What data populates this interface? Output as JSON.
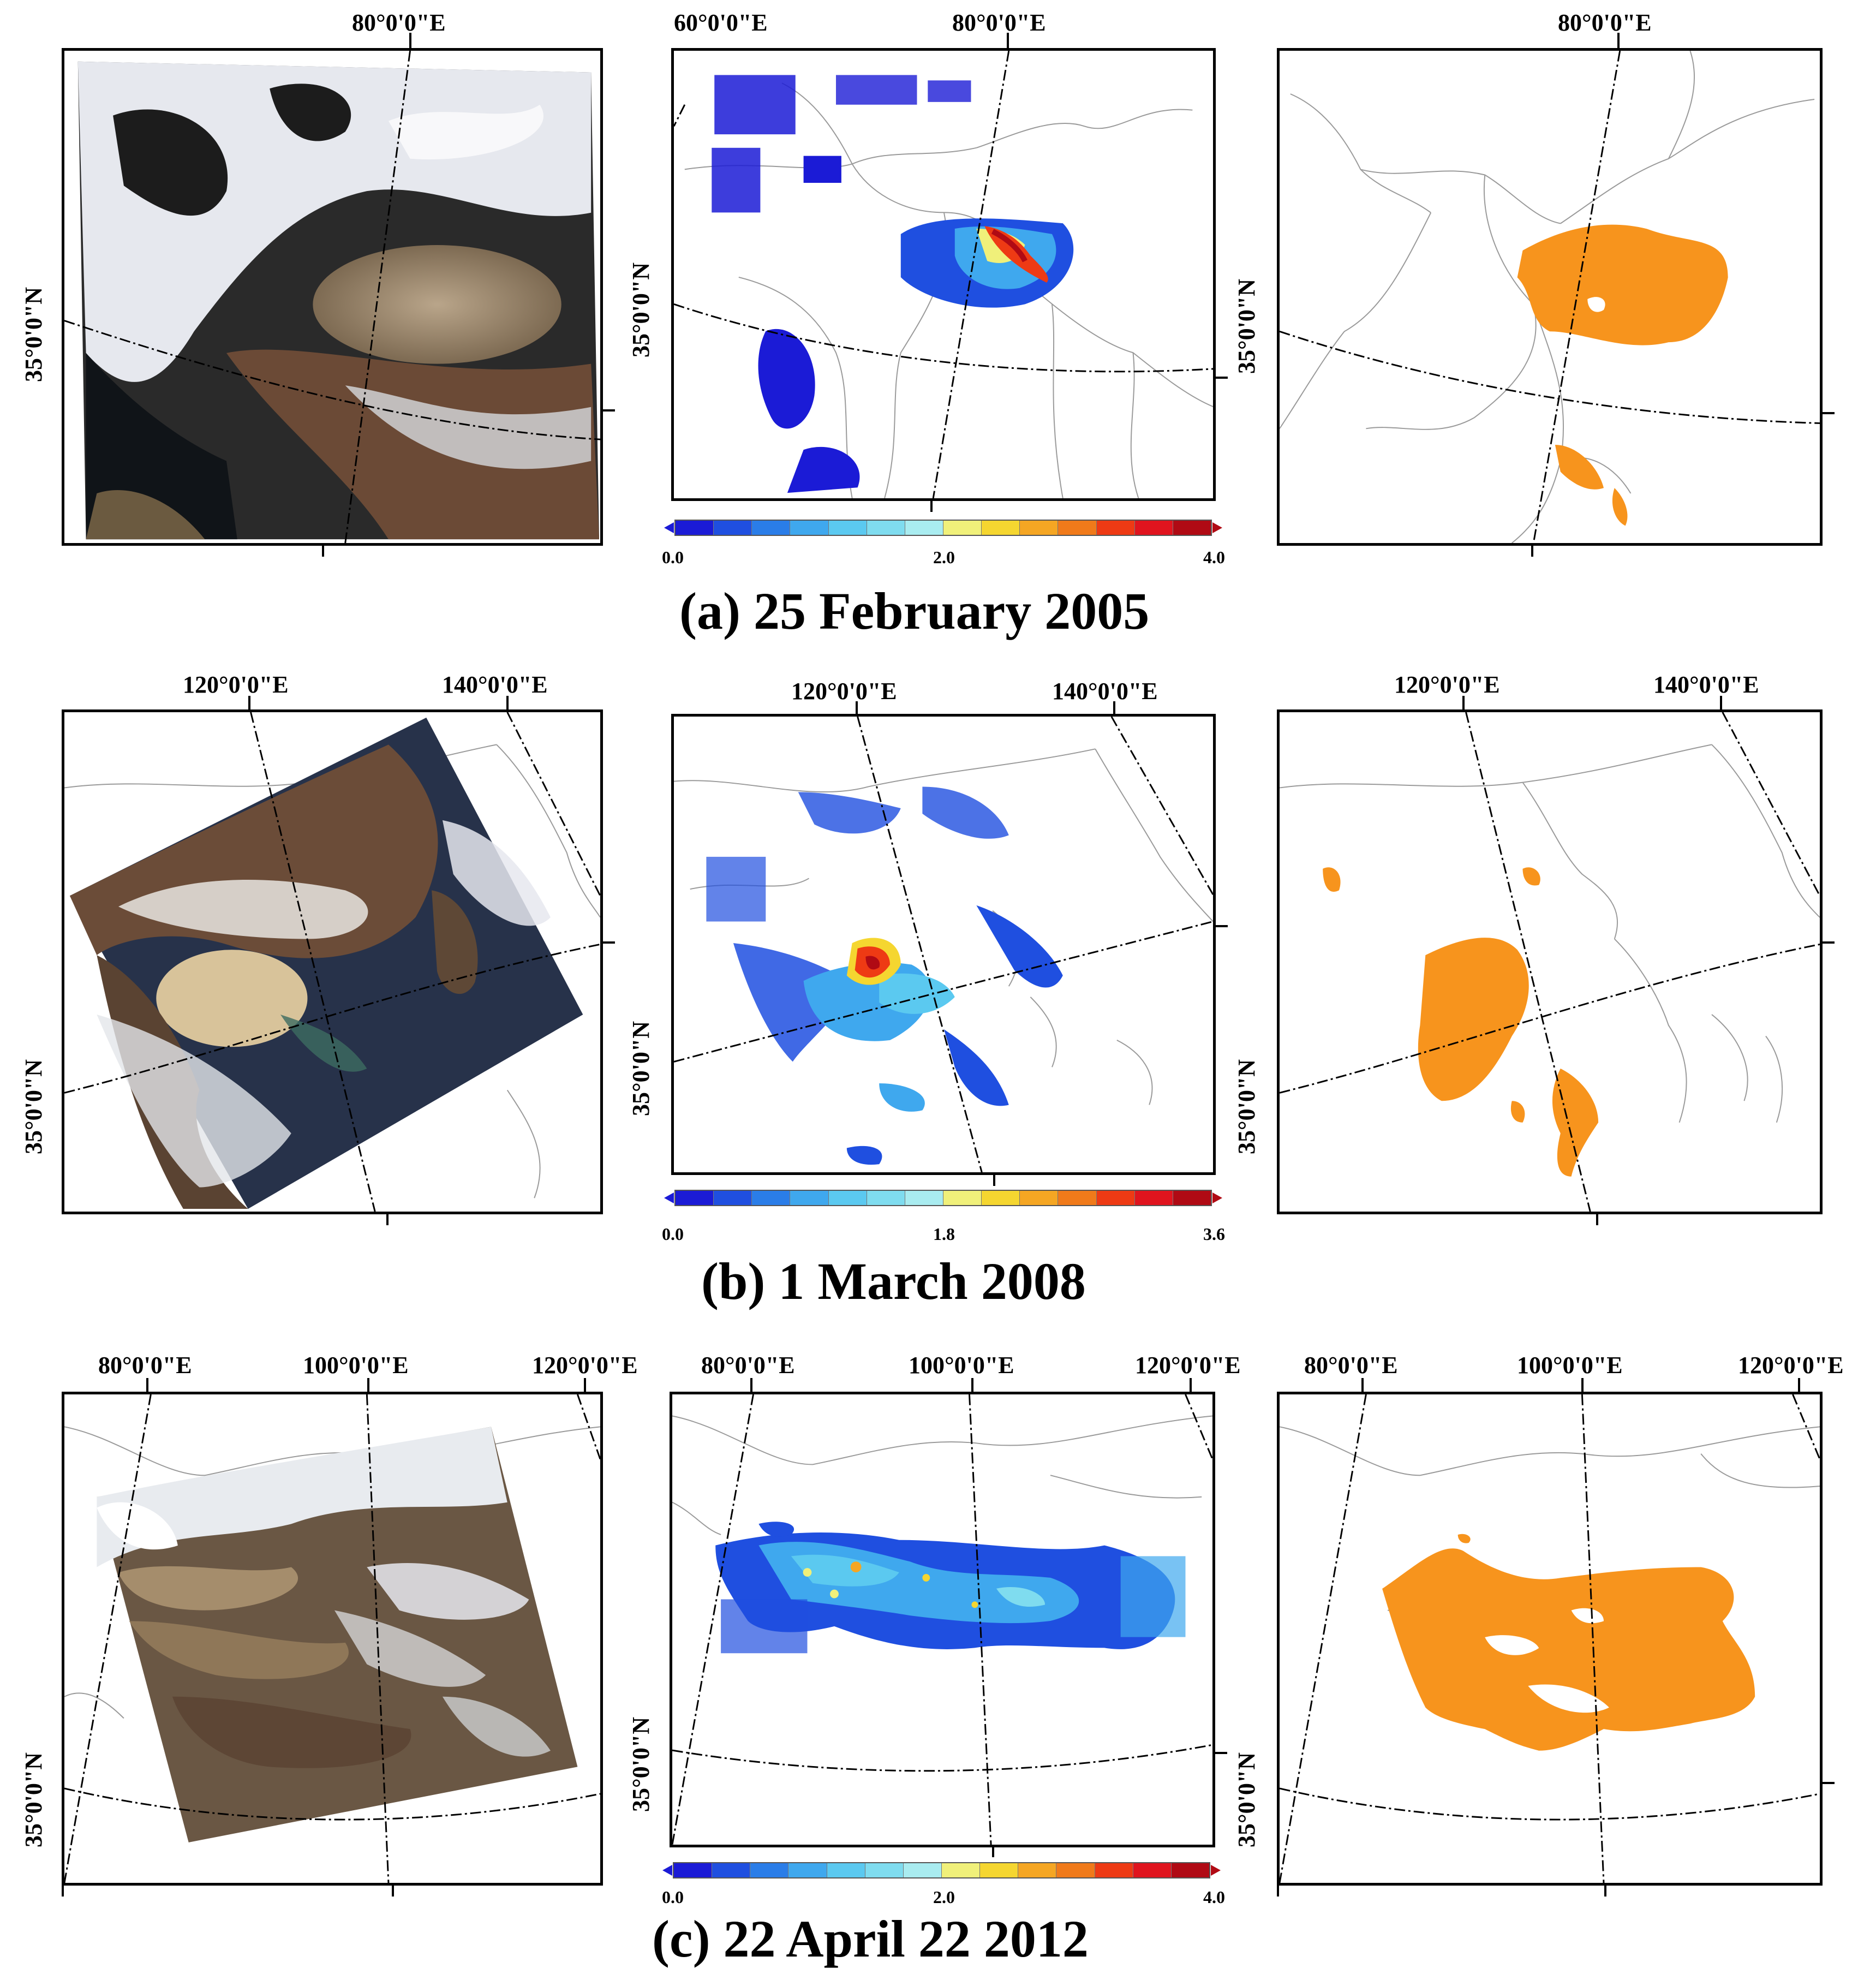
{
  "colorbar_colors": [
    "#1b1bd6",
    "#1f4fe0",
    "#2a7de8",
    "#3fa8ee",
    "#5bc9f0",
    "#7fdcef",
    "#a9ecf0",
    "#f0f07a",
    "#f5d630",
    "#f5a623",
    "#f07a1a",
    "#ee3a14",
    "#e0141e",
    "#b00a14"
  ],
  "dust_color": "#f7941d",
  "rows": [
    {
      "caption": "(a) 25 February 2005",
      "lon_labels_p1": [
        "80°0'0\"E"
      ],
      "lat_label": "35°0'0\"N",
      "lon_labels_p2": [
        "60°0'0\"E",
        "80°0'0\"E"
      ],
      "lon_labels_p3": [
        "80°0'0\"E"
      ],
      "colorbar": {
        "min": "0.0",
        "mid": "2.0",
        "max": "4.0"
      }
    },
    {
      "caption": "(b) 1 March 2008",
      "lon_labels_p1": [
        "120°0'0\"E",
        "140°0'0\"E"
      ],
      "lat_label": "35°0'0\"N",
      "lon_labels_p2": [
        "120°0'0\"E",
        "140°0'0\"E"
      ],
      "lon_labels_p3": [
        "120°0'0\"E",
        "140°0'0\"E"
      ],
      "colorbar": {
        "min": "0.0",
        "mid": "1.8",
        "max": "3.6"
      }
    },
    {
      "caption": "(c) 22 April 22 2012",
      "lon_labels_p1": [
        "80°0'0\"E",
        "100°0'0\"E",
        "120°0'0\"E"
      ],
      "lat_label": "35°0'0\"N",
      "lon_labels_p2": [
        "80°0'0\"E",
        "100°0'0\"E",
        "120°0'0\"E"
      ],
      "lon_labels_p3": [
        "80°0'0\"E",
        "100°0'0\"E",
        "120°0'0\"E"
      ],
      "colorbar": {
        "min": "0.0",
        "mid": "2.0",
        "max": "4.0"
      }
    }
  ]
}
